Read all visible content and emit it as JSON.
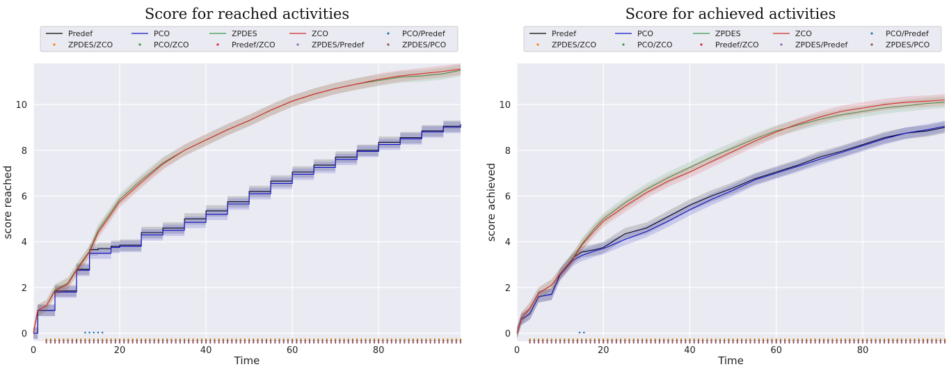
{
  "legend": {
    "entries": [
      {
        "label": "Predef",
        "kind": "line",
        "color": "#000000"
      },
      {
        "label": "PCO",
        "kind": "line",
        "color": "#1010c8"
      },
      {
        "label": "ZPDES",
        "kind": "line",
        "color": "#3a9a4a"
      },
      {
        "label": "ZCO",
        "kind": "line",
        "color": "#d62728"
      },
      {
        "label": "PCO/Predef",
        "kind": "dot",
        "color": "#1f77b4"
      },
      {
        "label": "ZPDES/ZCO",
        "kind": "dot",
        "color": "#ff7f0e"
      },
      {
        "label": "PCO/ZCO",
        "kind": "dot",
        "color": "#2ca02c"
      },
      {
        "label": "Predef/ZCO",
        "kind": "dot",
        "color": "#d62728"
      },
      {
        "label": "ZPDES/Predef",
        "kind": "dot",
        "color": "#9467bd"
      },
      {
        "label": "ZPDES/PCO",
        "kind": "dot",
        "color": "#8c564b"
      }
    ]
  },
  "chart_data": [
    {
      "type": "line",
      "title": "Score for reached activities",
      "xlabel": "Time",
      "ylabel": "score reached",
      "xlim": [
        0,
        99
      ],
      "ylim": [
        -0.35,
        11.8
      ],
      "xticks": [
        0,
        20,
        40,
        60,
        80
      ],
      "yticks": [
        0,
        2,
        4,
        6,
        8,
        10
      ],
      "grid": true,
      "legend_position": "top",
      "x": [
        0,
        1,
        3,
        5,
        8,
        10,
        13,
        15,
        18,
        20,
        25,
        30,
        35,
        40,
        45,
        50,
        55,
        60,
        65,
        70,
        75,
        80,
        85,
        90,
        95,
        99
      ],
      "series": [
        {
          "name": "Predef",
          "style": "step",
          "values": [
            0,
            1.0,
            1.0,
            1.85,
            1.85,
            2.8,
            3.65,
            3.7,
            3.8,
            3.85,
            4.4,
            4.6,
            5.0,
            5.35,
            5.75,
            6.2,
            6.65,
            7.05,
            7.35,
            7.7,
            8.0,
            8.35,
            8.55,
            8.85,
            9.05,
            9.15
          ]
        },
        {
          "name": "PCO",
          "style": "step",
          "values": [
            0,
            1.0,
            1.0,
            1.8,
            1.8,
            2.75,
            3.5,
            3.5,
            3.75,
            3.8,
            4.3,
            4.5,
            4.85,
            5.2,
            5.65,
            6.1,
            6.55,
            6.95,
            7.25,
            7.6,
            7.95,
            8.25,
            8.5,
            8.8,
            9.0,
            9.15
          ]
        },
        {
          "name": "ZPDES",
          "style": "line",
          "values": [
            0,
            1.0,
            1.2,
            1.9,
            2.2,
            2.8,
            3.6,
            4.5,
            5.3,
            5.85,
            6.7,
            7.45,
            8.0,
            8.45,
            8.9,
            9.3,
            9.75,
            10.15,
            10.45,
            10.7,
            10.9,
            11.05,
            11.2,
            11.25,
            11.35,
            11.5
          ]
        },
        {
          "name": "ZCO",
          "style": "line",
          "values": [
            0,
            1.0,
            1.2,
            1.85,
            2.15,
            2.75,
            3.55,
            4.4,
            5.2,
            5.75,
            6.6,
            7.4,
            8.0,
            8.45,
            8.9,
            9.3,
            9.75,
            10.15,
            10.45,
            10.7,
            10.9,
            11.1,
            11.25,
            11.35,
            11.45,
            11.55
          ]
        }
      ]
    },
    {
      "type": "line",
      "title": "Score for achieved activities",
      "xlabel": "Time",
      "ylabel": "score achieved",
      "xlim": [
        0,
        99
      ],
      "ylim": [
        -0.35,
        11.8
      ],
      "xticks": [
        0,
        20,
        40,
        60,
        80
      ],
      "yticks": [
        0,
        2,
        4,
        6,
        8,
        10
      ],
      "grid": true,
      "legend_position": "top",
      "x": [
        0,
        1,
        3,
        5,
        8,
        10,
        13,
        15,
        18,
        20,
        25,
        30,
        35,
        40,
        45,
        50,
        55,
        60,
        65,
        70,
        75,
        80,
        85,
        90,
        95,
        99
      ],
      "series": [
        {
          "name": "Predef",
          "style": "line",
          "values": [
            0,
            0.6,
            0.85,
            1.6,
            1.7,
            2.6,
            3.3,
            3.55,
            3.65,
            3.75,
            4.35,
            4.6,
            5.1,
            5.6,
            6.0,
            6.35,
            6.75,
            7.05,
            7.35,
            7.7,
            7.95,
            8.25,
            8.55,
            8.75,
            8.85,
            9.0
          ]
        },
        {
          "name": "PCO",
          "style": "line",
          "values": [
            0,
            0.6,
            0.85,
            1.6,
            1.7,
            2.55,
            3.2,
            3.4,
            3.6,
            3.7,
            4.1,
            4.45,
            4.9,
            5.4,
            5.85,
            6.25,
            6.7,
            7.0,
            7.3,
            7.6,
            7.9,
            8.2,
            8.5,
            8.75,
            8.9,
            9.05
          ]
        },
        {
          "name": "ZPDES",
          "style": "line",
          "values": [
            0,
            0.65,
            1.1,
            1.75,
            2.1,
            2.6,
            3.3,
            3.9,
            4.6,
            5.0,
            5.7,
            6.3,
            6.8,
            7.25,
            7.7,
            8.1,
            8.5,
            8.85,
            9.1,
            9.35,
            9.55,
            9.7,
            9.85,
            9.95,
            10.05,
            10.1
          ]
        },
        {
          "name": "ZCO",
          "style": "line",
          "values": [
            0,
            0.65,
            1.1,
            1.75,
            2.1,
            2.6,
            3.25,
            3.85,
            4.5,
            4.9,
            5.55,
            6.15,
            6.65,
            7.05,
            7.5,
            7.95,
            8.4,
            8.8,
            9.15,
            9.45,
            9.7,
            9.85,
            10.0,
            10.1,
            10.15,
            10.2
          ]
        }
      ]
    }
  ]
}
